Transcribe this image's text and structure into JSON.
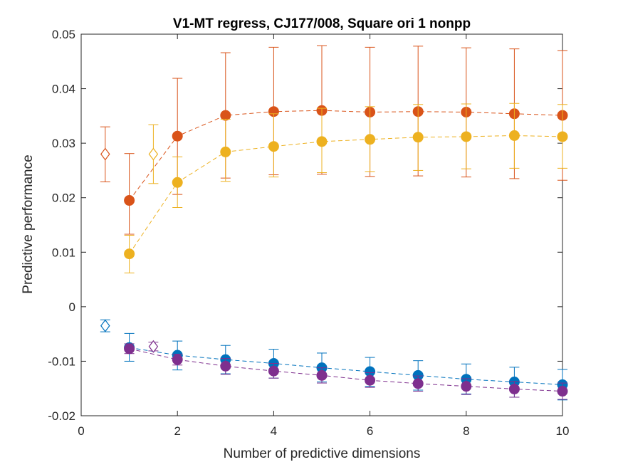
{
  "chart_data": {
    "type": "scatter",
    "title": "V1-MT regress, CJ177/008, Square ori 1 nonpp",
    "xlabel": "Number of predictive dimensions",
    "ylabel": "Predictive performance",
    "xlim": [
      0,
      10
    ],
    "ylim": [
      -0.02,
      0.05
    ],
    "xticks": [
      0,
      2,
      4,
      6,
      8,
      10
    ],
    "xtick_labels": [
      "0",
      "2",
      "4",
      "6",
      "8",
      "10"
    ],
    "yticks": [
      -0.02,
      -0.01,
      0,
      0.01,
      0.02,
      0.03,
      0.04,
      0.05
    ],
    "ytick_labels": [
      "-0.02",
      "-0.01",
      "0",
      "0.01",
      "0.02",
      "0.03",
      "0.04",
      "0.05"
    ],
    "grid": false,
    "series": [
      {
        "name": "orange",
        "color": "#D95319",
        "x": [
          1,
          2,
          3,
          4,
          5,
          6,
          7,
          8,
          9,
          10
        ],
        "y": [
          0.0195,
          0.0313,
          0.0351,
          0.0358,
          0.036,
          0.0357,
          0.0358,
          0.0357,
          0.0354,
          0.0351
        ],
        "err_low": [
          0.0133,
          0.0206,
          0.0236,
          0.0242,
          0.0243,
          0.0239,
          0.024,
          0.0238,
          0.0235,
          0.0232
        ],
        "err_high": [
          0.0281,
          0.0419,
          0.0466,
          0.0476,
          0.0479,
          0.0476,
          0.0478,
          0.0475,
          0.0473,
          0.047
        ],
        "reference": {
          "x": 0.5,
          "y": 0.028,
          "err_low": 0.0229,
          "err_high": 0.033
        }
      },
      {
        "name": "yellow",
        "color": "#EDB120",
        "x": [
          1,
          2,
          3,
          4,
          5,
          6,
          7,
          8,
          9,
          10
        ],
        "y": [
          0.0097,
          0.0228,
          0.0284,
          0.0294,
          0.0303,
          0.0307,
          0.0311,
          0.0312,
          0.0314,
          0.0312
        ],
        "err_low": [
          0.0062,
          0.0182,
          0.023,
          0.0238,
          0.0246,
          0.0248,
          0.025,
          0.0253,
          0.0254,
          0.0254
        ],
        "err_high": [
          0.0131,
          0.0275,
          0.0344,
          0.0354,
          0.0364,
          0.0367,
          0.0371,
          0.0372,
          0.0373,
          0.0371
        ],
        "reference": {
          "x": 1.5,
          "y": 0.028,
          "err_low": 0.0226,
          "err_high": 0.0334
        }
      },
      {
        "name": "blue",
        "color": "#0072BD",
        "x": [
          1,
          2,
          3,
          4,
          5,
          6,
          7,
          8,
          9,
          10
        ],
        "y": [
          -0.0075,
          -0.0089,
          -0.0097,
          -0.0104,
          -0.0112,
          -0.0119,
          -0.0126,
          -0.0133,
          -0.0138,
          -0.0143
        ],
        "err_low": [
          -0.01,
          -0.0116,
          -0.0123,
          -0.0131,
          -0.0138,
          -0.0146,
          -0.0153,
          -0.016,
          -0.0166,
          -0.0171
        ],
        "err_high": [
          -0.0049,
          -0.0063,
          -0.0071,
          -0.0078,
          -0.0085,
          -0.0093,
          -0.0099,
          -0.0105,
          -0.0111,
          -0.0115
        ],
        "reference": {
          "x": 0.5,
          "y": -0.0035,
          "err_low": -0.0046,
          "err_high": -0.0024
        }
      },
      {
        "name": "purple",
        "color": "#7E2F8E",
        "x": [
          1,
          2,
          3,
          4,
          5,
          6,
          7,
          8,
          9,
          10
        ],
        "y": [
          -0.0077,
          -0.0097,
          -0.0109,
          -0.0118,
          -0.0126,
          -0.0135,
          -0.0141,
          -0.0146,
          -0.0151,
          -0.0155
        ],
        "err_low": [
          -0.0086,
          -0.0107,
          -0.0124,
          -0.0131,
          -0.014,
          -0.0148,
          -0.0155,
          -0.0161,
          -0.0166,
          -0.017
        ],
        "err_high": [
          -0.0068,
          -0.0087,
          -0.0095,
          -0.0104,
          -0.0112,
          -0.0121,
          -0.0127,
          -0.0132,
          -0.0137,
          -0.014
        ],
        "reference": {
          "x": 1.5,
          "y": -0.0073,
          "err_low": -0.0081,
          "err_high": -0.0065
        }
      }
    ]
  }
}
